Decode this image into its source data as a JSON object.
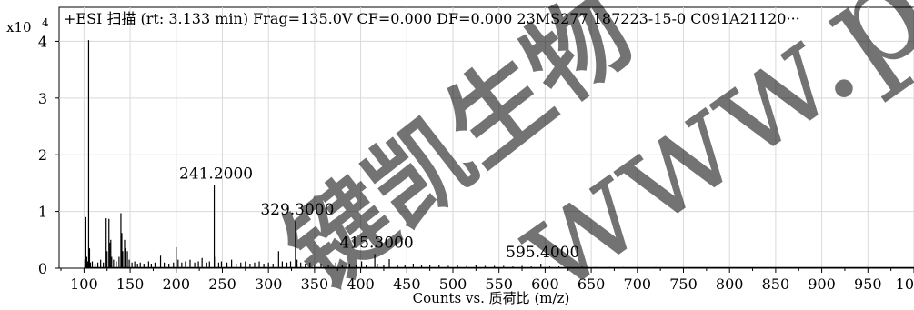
{
  "chart_data": {
    "type": "line",
    "title": "+ESI 扫描 (rt: 3.133 min) Frag=135.0V CF=0.000 DF=0.000 23MS277 187223-15-0 C091A21120···",
    "xlabel": "Counts vs. 质荷比 (m/z)",
    "y_scale_label": "x10",
    "y_scale_exponent": "4",
    "xlim": [
      73,
      1000
    ],
    "ylim": [
      0,
      4.6
    ],
    "x_ticks": [
      100,
      150,
      200,
      250,
      300,
      350,
      400,
      450,
      500,
      550,
      600,
      650,
      700,
      750,
      800,
      850,
      900,
      950,
      1000
    ],
    "x_tick_labels": [
      "100",
      "150",
      "200",
      "250",
      "300",
      "350",
      "400",
      "450",
      "500",
      "550",
      "600",
      "650",
      "700",
      "750",
      "800",
      "850",
      "900",
      "950",
      "1000"
    ],
    "y_ticks": [
      0,
      1,
      2,
      3,
      4
    ],
    "y_tick_labels": [
      "0",
      "1",
      "2",
      "3",
      "4"
    ],
    "grid": true,
    "annotations": [
      {
        "text": "241.2000",
        "x": 241.2,
        "y": 1.47
      },
      {
        "text": "329.3000",
        "x": 329.3,
        "y": 0.83
      },
      {
        "text": "415.3000",
        "x": 415.3,
        "y": 0.25
      },
      {
        "text": "595.4000",
        "x": 595.4,
        "y": 0.08
      }
    ],
    "series": [
      {
        "peaks": [
          [
            101,
            0.15
          ],
          [
            102,
            0.9
          ],
          [
            103,
            0.2
          ],
          [
            104,
            0.12
          ],
          [
            105,
            4.02
          ],
          [
            106,
            0.35
          ],
          [
            107,
            0.1
          ],
          [
            109,
            0.12
          ],
          [
            112,
            0.08
          ],
          [
            115,
            0.1
          ],
          [
            118,
            0.15
          ],
          [
            121,
            0.1
          ],
          [
            124,
            0.88
          ],
          [
            125,
            0.3
          ],
          [
            127,
            0.87
          ],
          [
            128,
            0.45
          ],
          [
            129,
            0.5
          ],
          [
            130,
            0.2
          ],
          [
            132,
            0.15
          ],
          [
            135,
            0.12
          ],
          [
            138,
            0.2
          ],
          [
            140,
            0.97
          ],
          [
            141,
            0.62
          ],
          [
            142,
            0.3
          ],
          [
            144,
            0.5
          ],
          [
            145,
            0.35
          ],
          [
            147,
            0.3
          ],
          [
            149,
            0.15
          ],
          [
            152,
            0.1
          ],
          [
            155,
            0.12
          ],
          [
            158,
            0.08
          ],
          [
            161,
            0.1
          ],
          [
            165,
            0.08
          ],
          [
            170,
            0.12
          ],
          [
            173,
            0.08
          ],
          [
            177,
            0.1
          ],
          [
            183,
            0.22
          ],
          [
            187,
            0.1
          ],
          [
            192,
            0.08
          ],
          [
            197,
            0.1
          ],
          [
            200,
            0.37
          ],
          [
            202,
            0.15
          ],
          [
            206,
            0.1
          ],
          [
            210,
            0.12
          ],
          [
            215,
            0.15
          ],
          [
            220,
            0.1
          ],
          [
            224,
            0.12
          ],
          [
            228,
            0.18
          ],
          [
            233,
            0.1
          ],
          [
            236,
            0.12
          ],
          [
            241.2,
            1.47
          ],
          [
            243,
            0.2
          ],
          [
            246,
            0.1
          ],
          [
            249,
            0.12
          ],
          [
            255,
            0.1
          ],
          [
            260,
            0.15
          ],
          [
            265,
            0.08
          ],
          [
            270,
            0.1
          ],
          [
            275,
            0.12
          ],
          [
            280,
            0.08
          ],
          [
            285,
            0.1
          ],
          [
            290,
            0.12
          ],
          [
            295,
            0.08
          ],
          [
            300,
            0.1
          ],
          [
            305,
            0.08
          ],
          [
            311,
            0.3
          ],
          [
            315,
            0.12
          ],
          [
            320,
            0.1
          ],
          [
            324,
            0.12
          ],
          [
            329.3,
            0.83
          ],
          [
            331,
            0.15
          ],
          [
            335,
            0.1
          ],
          [
            340,
            0.08
          ],
          [
            345,
            0.1
          ],
          [
            350,
            0.06
          ],
          [
            357,
            0.08
          ],
          [
            365,
            0.06
          ],
          [
            373,
            0.1
          ],
          [
            380,
            0.06
          ],
          [
            388,
            0.08
          ],
          [
            395,
            0.06
          ],
          [
            401,
            0.12
          ],
          [
            406,
            0.06
          ],
          [
            415.3,
            0.25
          ],
          [
            418,
            0.08
          ],
          [
            425,
            0.06
          ],
          [
            431,
            0.16
          ],
          [
            440,
            0.05
          ],
          [
            448,
            0.06
          ],
          [
            457,
            0.08
          ],
          [
            466,
            0.05
          ],
          [
            475,
            0.06
          ],
          [
            485,
            0.05
          ],
          [
            495,
            0.04
          ],
          [
            505,
            0.05
          ],
          [
            515,
            0.04
          ],
          [
            525,
            0.05
          ],
          [
            535,
            0.04
          ],
          [
            545,
            0.04
          ],
          [
            555,
            0.04
          ],
          [
            565,
            0.03
          ],
          [
            575,
            0.04
          ],
          [
            585,
            0.03
          ],
          [
            595.4,
            0.08
          ],
          [
            605,
            0.03
          ],
          [
            615,
            0.03
          ],
          [
            625,
            0.02
          ],
          [
            640,
            0.03
          ],
          [
            655,
            0.02
          ],
          [
            670,
            0.02
          ],
          [
            685,
            0.02
          ],
          [
            700,
            0.02
          ],
          [
            720,
            0.02
          ],
          [
            740,
            0.015
          ],
          [
            760,
            0.015
          ],
          [
            780,
            0.015
          ],
          [
            800,
            0.01
          ],
          [
            830,
            0.01
          ],
          [
            860,
            0.01
          ],
          [
            890,
            0.01
          ],
          [
            920,
            0.01
          ],
          [
            950,
            0.01
          ],
          [
            980,
            0.01
          ]
        ]
      }
    ]
  },
  "watermark": {
    "text_cn": "键凯生物",
    "text_en": "www.peg",
    "color": "#b8b8b8"
  }
}
